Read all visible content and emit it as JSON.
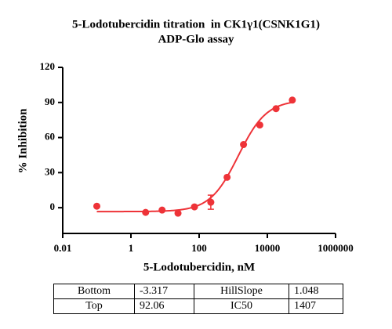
{
  "chart_data": {
    "type": "scatter",
    "title": [
      "5-Lodotubercidin titration  in CK1γ1(CSNK1G1)",
      "ADP-Glo assay"
    ],
    "xlabel": "5-Lodotubercidin, nM",
    "ylabel": "% Inhibition",
    "xscale": "log",
    "x": [
      0.1,
      2.7,
      8.2,
      24,
      73,
      220,
      660,
      2000,
      6000,
      18000,
      54000
    ],
    "series": [
      {
        "color": "#ee3338",
        "values": [
          1.3,
          -4,
          -2,
          -4.7,
          0.7,
          4.7,
          26,
          54,
          70.7,
          84.7,
          92
        ],
        "errors": [
          null,
          null,
          null,
          null,
          null,
          6,
          null,
          null,
          null,
          null,
          null
        ]
      }
    ],
    "xlim": [
      0.01,
      1000000
    ],
    "xticks": [
      0.01,
      1,
      100,
      10000,
      1000000
    ],
    "ylim": [
      -22,
      120
    ],
    "yticks": [
      0,
      30,
      60,
      90,
      120
    ]
  },
  "table": {
    "rows": [
      [
        "Bottom",
        -3.317,
        "HillSlope",
        1.048
      ],
      [
        "Top",
        92.06,
        "IC50",
        1407
      ]
    ]
  }
}
